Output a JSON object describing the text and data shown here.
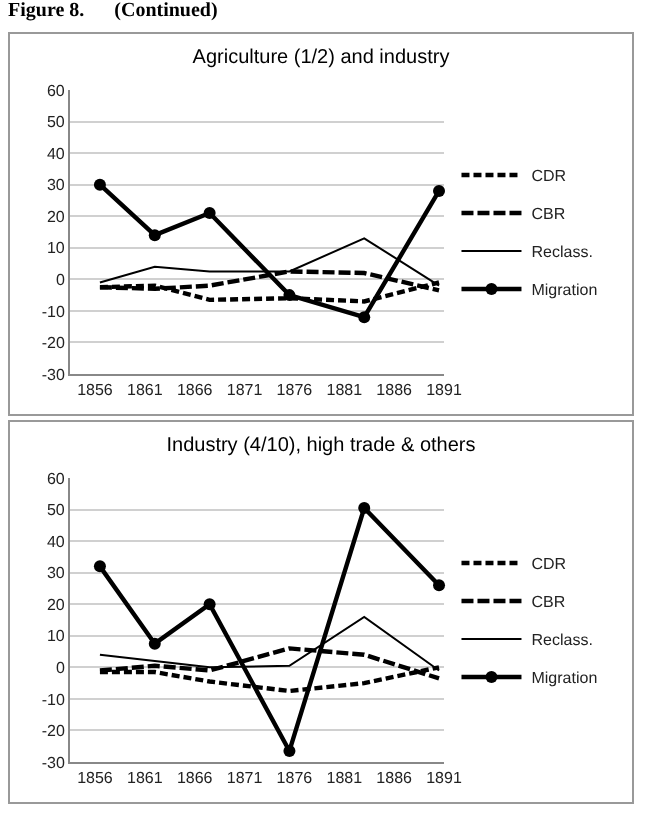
{
  "chart_data": [
    {
      "type": "line",
      "title": "Agriculture (1/2) and industry",
      "annotations": [
        "Figure 8.      (Continued)"
      ],
      "x": [
        1856.5,
        1862,
        1867.5,
        1875.5,
        1883,
        1890.5
      ],
      "xlim": [
        1853.5,
        1891
      ],
      "xticks": [
        1856,
        1861,
        1866,
        1871,
        1876,
        1881,
        1886,
        1891
      ],
      "ylim": [
        -30,
        60
      ],
      "yticks": [
        -30,
        -20,
        -10,
        0,
        10,
        20,
        30,
        40,
        50,
        60
      ],
      "grid": "y",
      "legend": "right",
      "series": [
        {
          "name": "CDR",
          "color": "#000000",
          "line_style": "dotted",
          "values": [
            -2.5,
            -2,
            -6.5,
            -6,
            -7,
            -1
          ]
        },
        {
          "name": "CBR",
          "color": "#000000",
          "line_style": "dashed",
          "values": [
            -2.5,
            -3,
            -2,
            2.5,
            2,
            -3.5
          ]
        },
        {
          "name": "Reclass.",
          "color": "#000000",
          "line_style": "solid",
          "values": [
            -1,
            4,
            2.5,
            2.5,
            13,
            -2
          ]
        },
        {
          "name": "Migration",
          "color": "#000000",
          "line_style": "solid",
          "marker": "circle",
          "values": [
            30,
            14,
            21,
            -5,
            -12,
            28
          ]
        }
      ]
    },
    {
      "type": "line",
      "title": "Industry (4/10), high trade & others",
      "x": [
        1856.5,
        1862,
        1867.5,
        1875.5,
        1883,
        1890.5
      ],
      "xlim": [
        1853.5,
        1891
      ],
      "xticks": [
        1856,
        1861,
        1866,
        1871,
        1876,
        1881,
        1886,
        1891
      ],
      "ylim": [
        -30,
        60
      ],
      "yticks": [
        -30,
        -20,
        -10,
        0,
        10,
        20,
        30,
        40,
        50,
        60
      ],
      "grid": "y",
      "legend": "right",
      "series": [
        {
          "name": "CDR",
          "color": "#000000",
          "line_style": "dotted",
          "values": [
            -1.5,
            -1.5,
            -4.5,
            -7.5,
            -5,
            0
          ]
        },
        {
          "name": "CBR",
          "color": "#000000",
          "line_style": "dashed",
          "values": [
            -1,
            0.5,
            -1,
            6,
            4,
            -3.5
          ]
        },
        {
          "name": "Reclass.",
          "color": "#000000",
          "line_style": "solid",
          "values": [
            4,
            2,
            0,
            0.5,
            16,
            -1
          ]
        },
        {
          "name": "Migration",
          "color": "#000000",
          "line_style": "solid",
          "marker": "circle",
          "values": [
            32,
            7.5,
            20,
            -26.5,
            50.5,
            26
          ]
        }
      ]
    }
  ]
}
